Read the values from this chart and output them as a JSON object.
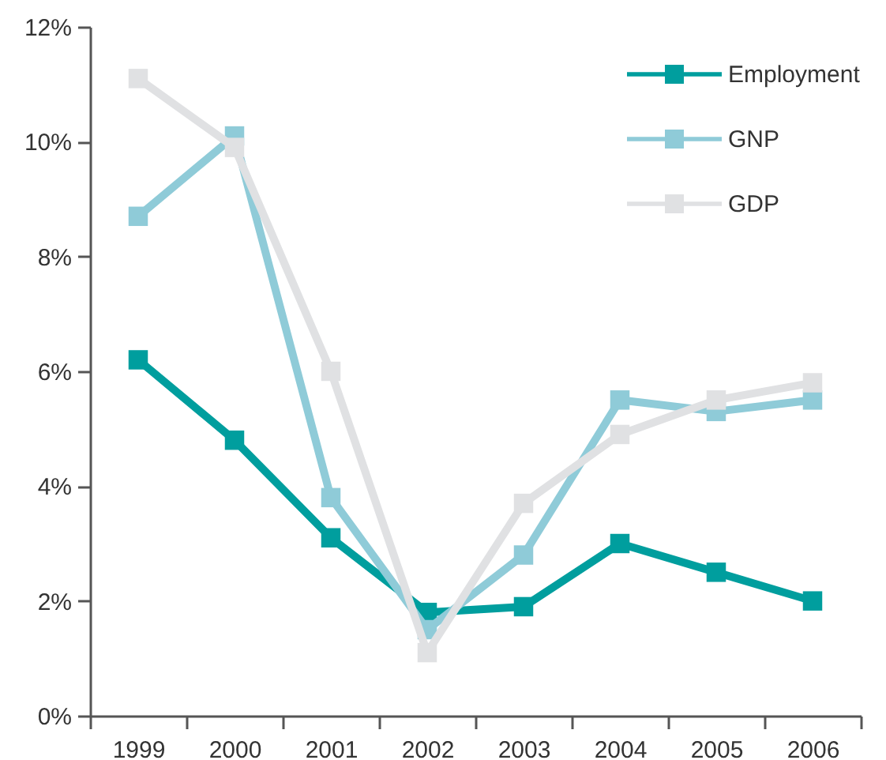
{
  "chart_data": {
    "type": "line",
    "categories": [
      "1999",
      "2000",
      "2001",
      "2002",
      "2003",
      "2004",
      "2005",
      "2006"
    ],
    "series": [
      {
        "name": "Employment",
        "color": "#009e9e",
        "values": [
          6.2,
          4.8,
          3.1,
          1.8,
          1.9,
          3.0,
          2.5,
          2.0
        ]
      },
      {
        "name": "GNP",
        "color": "#8fcbd8",
        "values": [
          8.7,
          10.1,
          3.8,
          1.5,
          2.8,
          5.5,
          5.3,
          5.5
        ]
      },
      {
        "name": "GDP",
        "color": "#e0e1e3",
        "values": [
          11.1,
          9.9,
          6.0,
          1.1,
          3.7,
          4.9,
          5.5,
          5.8
        ]
      }
    ],
    "ylim": [
      0,
      12
    ],
    "yticks": [
      {
        "value": 0,
        "label": "0%"
      },
      {
        "value": 2,
        "label": "2%"
      },
      {
        "value": 4,
        "label": "4%"
      },
      {
        "value": 6,
        "label": "6%"
      },
      {
        "value": 8,
        "label": "8%"
      },
      {
        "value": 10,
        "label": "10%"
      },
      {
        "value": 12,
        "label": "12%"
      }
    ],
    "grid": false,
    "legend": "top right",
    "marker": "square",
    "line_style": "solid"
  }
}
